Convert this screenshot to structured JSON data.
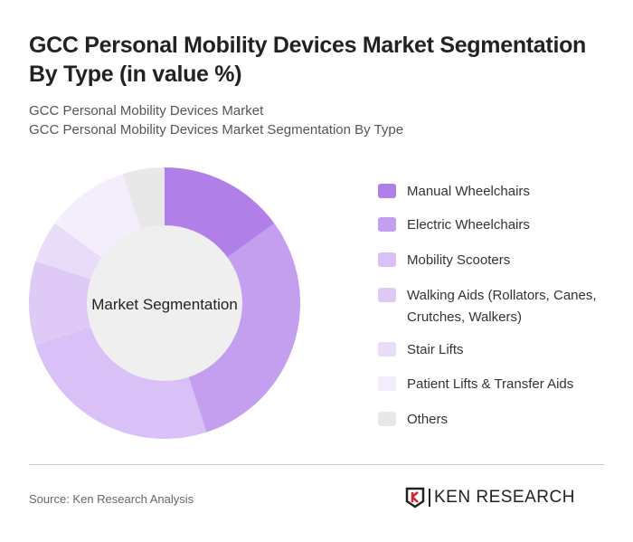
{
  "title": "GCC Personal Mobility Devices Market Segmentation By Type (in value %)",
  "subtitle1": "GCC Personal Mobility Devices Market",
  "subtitle2": "GCC Personal Mobility Devices Market Segmentation By Type",
  "chart_data": {
    "type": "pie",
    "variant": "donut",
    "center_label": "Market Segmentation",
    "categories": [
      "Manual Wheelchairs",
      "Electric Wheelchairs",
      "Mobility Scooters",
      "Walking Aids (Rollators, Canes, Crutches, Walkers)",
      "Stair Lifts",
      "Patient Lifts & Transfer Aids",
      "Others"
    ],
    "values": [
      15,
      30,
      25,
      10,
      5,
      10,
      5
    ],
    "colors": [
      "#b07fe8",
      "#c49ff0",
      "#d9c0f6",
      "#dfc9f6",
      "#e9dcf9",
      "#f3edfc",
      "#e8e8e8"
    ],
    "legend_position": "right"
  },
  "source": "Source: Ken Research Analysis",
  "logo_text": "KEN RESEARCH"
}
